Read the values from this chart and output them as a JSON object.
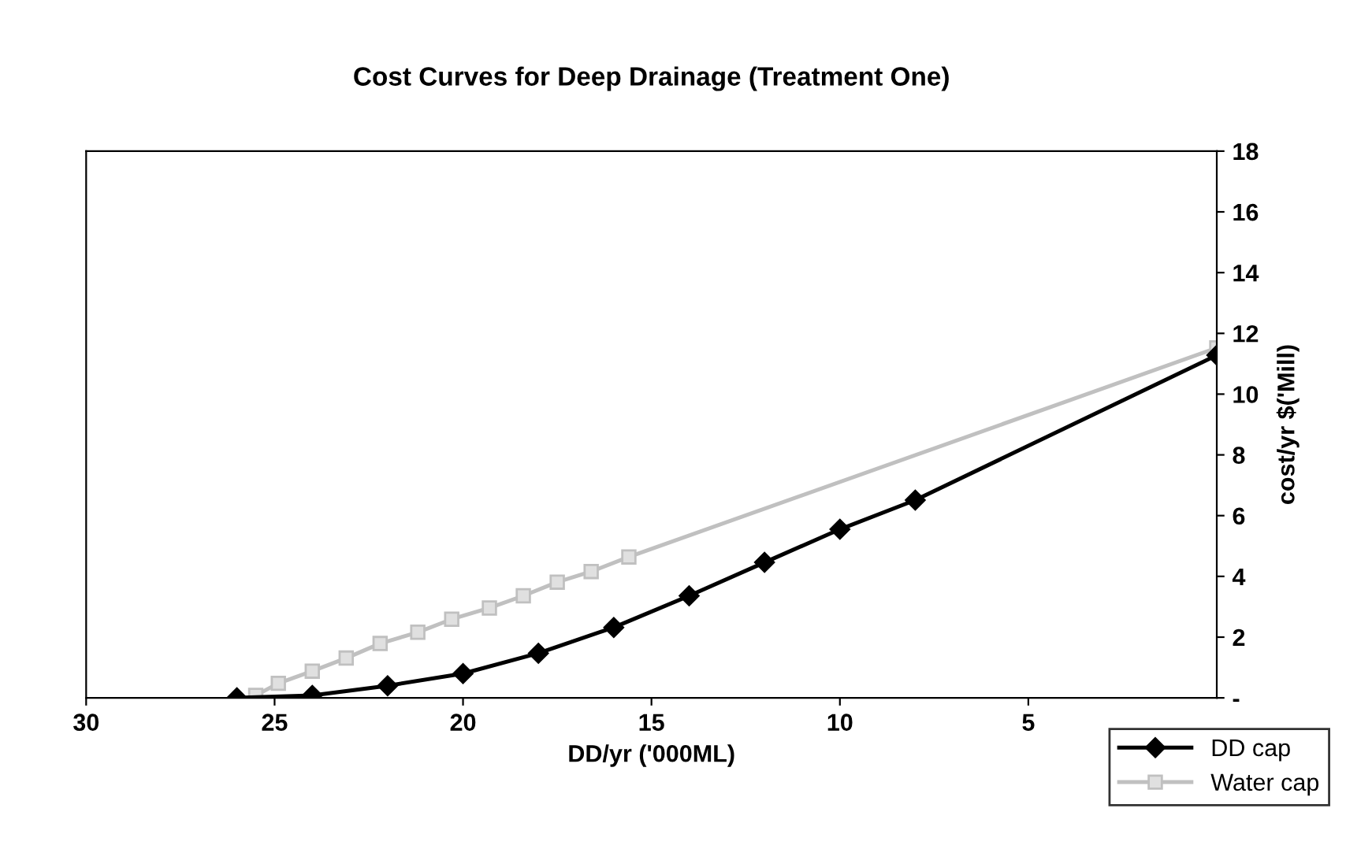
{
  "chart_data": {
    "type": "line",
    "title": "Cost Curves for Deep Drainage (Treatment One)",
    "xlabel": "DD/yr ('000ML)",
    "ylabel": "cost/yr $('Mill)",
    "xlim": [
      30,
      0
    ],
    "xticks": [
      30,
      25,
      20,
      15,
      10,
      5
    ],
    "ylim": [
      0,
      18
    ],
    "yticks": [
      {
        "value": 0,
        "label": "-"
      },
      2,
      4,
      6,
      8,
      10,
      12,
      14,
      16,
      18
    ],
    "grid": false,
    "legend": "bottom right",
    "series": [
      {
        "name": "DD cap",
        "color": "#000000",
        "marker": "diamond",
        "x": [
          26,
          24,
          22,
          20,
          18,
          16,
          14,
          12,
          10,
          8,
          0
        ],
        "values": [
          0,
          0.08,
          0.4,
          0.8,
          1.47,
          2.32,
          3.36,
          4.46,
          5.55,
          6.51,
          11.28
        ]
      },
      {
        "name": "Water cap",
        "color": "#c0c0c0",
        "marker": "square",
        "x": [
          25.5,
          24.9,
          24,
          23.1,
          22.2,
          21.2,
          20.3,
          19.3,
          18.4,
          17.5,
          16.6,
          15.6,
          0
        ],
        "values": [
          0.08,
          0.48,
          0.88,
          1.31,
          1.79,
          2.16,
          2.59,
          2.96,
          3.36,
          3.81,
          4.16,
          4.64,
          11.52
        ]
      }
    ]
  }
}
